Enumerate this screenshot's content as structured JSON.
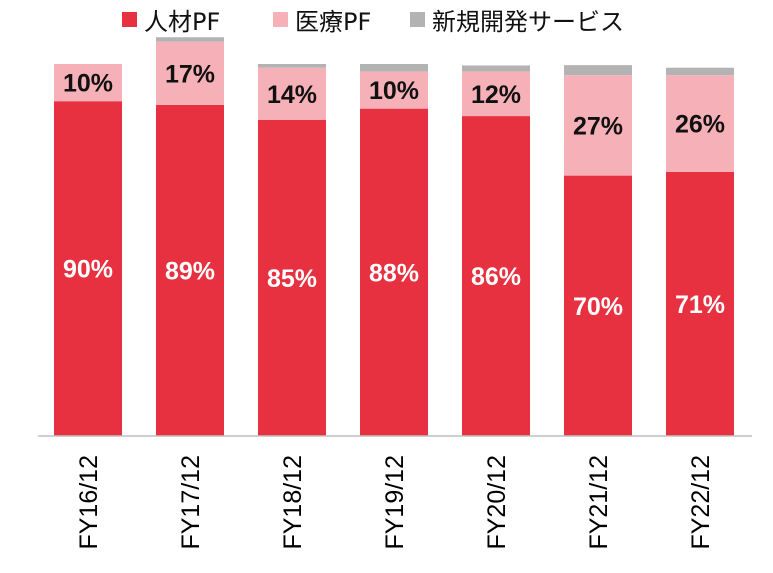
{
  "chart_data": {
    "type": "bar",
    "stacked": true,
    "normalized": true,
    "categories": [
      "FY16/12",
      "FY17/12",
      "FY18/12",
      "FY19/12",
      "FY20/12",
      "FY21/12",
      "FY22/12"
    ],
    "series": [
      {
        "name": "人材PF",
        "color": "#e83140",
        "values": [
          90,
          89,
          85,
          88,
          86,
          70,
          71
        ],
        "labels": [
          "90%",
          "89%",
          "85%",
          "88%",
          "86%",
          "70%",
          "71%"
        ],
        "label_color": "#ffffff"
      },
      {
        "name": "医療PF",
        "color": "#f6b1b8",
        "values": [
          10,
          17,
          14,
          10,
          12,
          27,
          26
        ],
        "labels": [
          "10%",
          "17%",
          "14%",
          "10%",
          "12%",
          "27%",
          "26%"
        ],
        "label_color": "#111111"
      },
      {
        "name": "新規開発サービス",
        "color": "#b3b3b3",
        "values": [
          0,
          1.2,
          1.0,
          2.0,
          1.6,
          2.7,
          2.0
        ],
        "labels": [
          "",
          "",
          "",
          "",
          "",
          "",
          ""
        ],
        "label_color": "#111111"
      }
    ],
    "ylim": [
      0,
      100
    ],
    "legend_position": "top",
    "grid": false,
    "tick_label_rotation": -90
  }
}
